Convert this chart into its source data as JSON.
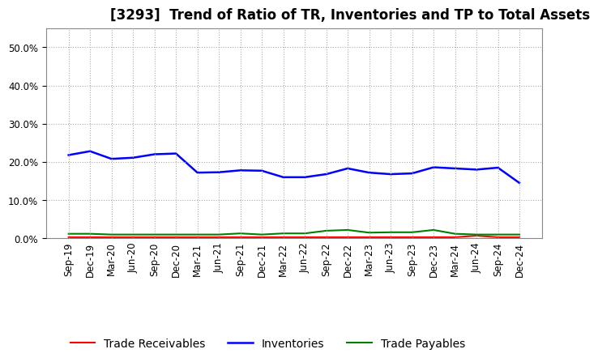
{
  "title": "[3293]  Trend of Ratio of TR, Inventories and TP to Total Assets",
  "labels": [
    "Sep-19",
    "Dec-19",
    "Mar-20",
    "Jun-20",
    "Sep-20",
    "Dec-20",
    "Mar-21",
    "Jun-21",
    "Sep-21",
    "Dec-21",
    "Mar-22",
    "Jun-22",
    "Sep-22",
    "Dec-22",
    "Mar-23",
    "Jun-23",
    "Sep-23",
    "Dec-23",
    "Mar-24",
    "Jun-24",
    "Sep-24",
    "Dec-24"
  ],
  "trade_receivables": [
    0.003,
    0.003,
    0.003,
    0.003,
    0.003,
    0.003,
    0.003,
    0.003,
    0.003,
    0.003,
    0.003,
    0.003,
    0.003,
    0.003,
    0.003,
    0.003,
    0.003,
    0.003,
    0.003,
    0.007,
    0.003,
    0.003
  ],
  "inventories": [
    0.218,
    0.228,
    0.208,
    0.211,
    0.22,
    0.222,
    0.172,
    0.173,
    0.178,
    0.177,
    0.16,
    0.16,
    0.168,
    0.183,
    0.172,
    0.168,
    0.17,
    0.186,
    0.183,
    0.18,
    0.185,
    0.145
  ],
  "trade_payables": [
    0.012,
    0.012,
    0.01,
    0.01,
    0.01,
    0.01,
    0.01,
    0.01,
    0.013,
    0.01,
    0.013,
    0.013,
    0.02,
    0.022,
    0.015,
    0.016,
    0.016,
    0.022,
    0.012,
    0.01,
    0.01,
    0.01
  ],
  "ylim": [
    0.0,
    0.55
  ],
  "yticks": [
    0.0,
    0.1,
    0.2,
    0.3,
    0.4,
    0.5
  ],
  "tr_color": "#ff0000",
  "inv_color": "#0000ff",
  "tp_color": "#008000",
  "bg_color": "#ffffff",
  "grid_color": "#aaaaaa",
  "title_fontsize": 12,
  "legend_fontsize": 10,
  "tick_fontsize": 8.5
}
